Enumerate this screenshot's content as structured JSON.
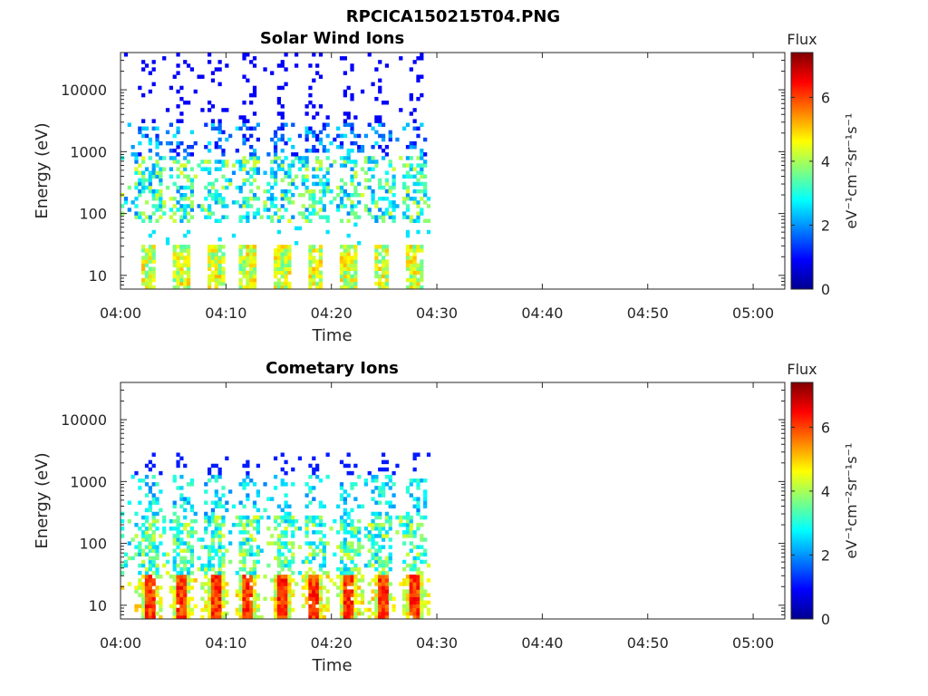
{
  "figure_title": "RPCICA150215T04.PNG",
  "chart_data": [
    {
      "type": "heatmap",
      "title": "Solar Wind Ions",
      "xlabel": "Time",
      "ylabel": "Energy (eV)",
      "x_tick_labels": [
        "04:00",
        "04:10",
        "04:20",
        "04:30",
        "04:40",
        "04:50",
        "05:00"
      ],
      "x_ticks_min": [
        0,
        10,
        20,
        30,
        40,
        50,
        60
      ],
      "xlim_min": [
        0,
        63
      ],
      "y_scale": "log",
      "y_tick_labels": [
        "10",
        "100",
        "1000",
        "10000"
      ],
      "y_ticks": [
        10,
        100,
        1000,
        10000
      ],
      "ylim": [
        6,
        40000
      ],
      "data_coverage_min": [
        0,
        29.5
      ],
      "pulse_times_min": [
        2.5,
        5.7,
        8.8,
        12.0,
        15.2,
        18.3,
        21.5,
        24.6,
        27.8
      ],
      "colorbar": {
        "title": "Flux",
        "label": "eV⁻¹cm⁻²sr⁻¹s⁻¹",
        "tick_labels": [
          "0",
          "2",
          "4",
          "6"
        ],
        "ticks": [
          0,
          2,
          4,
          6
        ],
        "range": [
          0,
          7.4
        ],
        "colormap": "jet"
      }
    },
    {
      "type": "heatmap",
      "title": "Cometary Ions",
      "xlabel": "Time",
      "ylabel": "Energy (eV)",
      "x_tick_labels": [
        "04:00",
        "04:10",
        "04:20",
        "04:30",
        "04:40",
        "04:50",
        "05:00"
      ],
      "x_ticks_min": [
        0,
        10,
        20,
        30,
        40,
        50,
        60
      ],
      "xlim_min": [
        0,
        63
      ],
      "y_scale": "log",
      "y_tick_labels": [
        "10",
        "100",
        "1000",
        "10000"
      ],
      "y_ticks": [
        10,
        100,
        1000,
        10000
      ],
      "ylim": [
        6,
        40000
      ],
      "data_coverage_min": [
        0,
        29.5
      ],
      "pulse_times_min": [
        2.5,
        5.7,
        8.8,
        12.0,
        15.2,
        18.3,
        21.5,
        24.6,
        27.8
      ],
      "colorbar": {
        "title": "Flux",
        "label": "eV⁻¹cm⁻²sr⁻¹s⁻¹",
        "tick_labels": [
          "0",
          "2",
          "4",
          "6"
        ],
        "ticks": [
          0,
          2,
          4,
          6
        ],
        "range": [
          0,
          7.4
        ],
        "colormap": "jet"
      }
    }
  ]
}
